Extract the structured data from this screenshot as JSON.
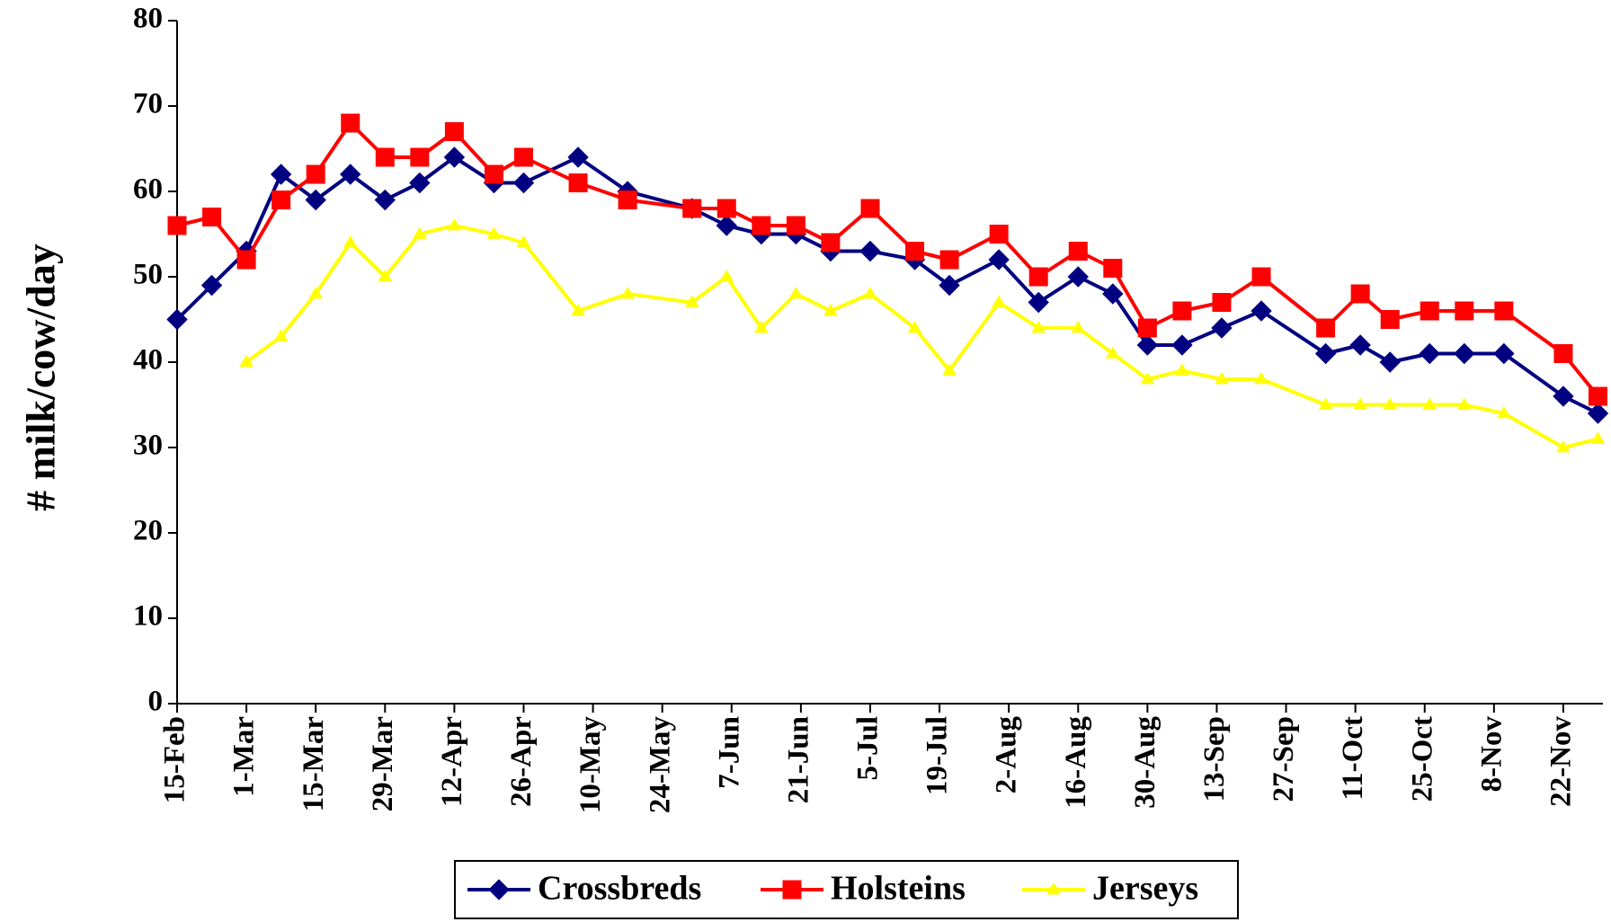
{
  "chart_data": {
    "type": "line",
    "y_label": "# milk/cow/day",
    "x": [
      0,
      7,
      14,
      21,
      28,
      35,
      42,
      49,
      56,
      64,
      70,
      81,
      91,
      104,
      111,
      118,
      125,
      132,
      140,
      149,
      156,
      166,
      174,
      182,
      189,
      196,
      203,
      211,
      219,
      232,
      239,
      245,
      253,
      260,
      268,
      280,
      287
    ],
    "series": [
      {
        "name": "Crossbreds",
        "color": "#000080",
        "marker": "diamond",
        "values": [
          45,
          49,
          53,
          62,
          59,
          62,
          59,
          61,
          64,
          61,
          61,
          64,
          60,
          58,
          56,
          55,
          55,
          53,
          53,
          52,
          49,
          52,
          47,
          50,
          48,
          42,
          42,
          44,
          46,
          41,
          42,
          40,
          41,
          41,
          41,
          36,
          34
        ]
      },
      {
        "name": "Holsteins",
        "color": "#ff0000",
        "marker": "square",
        "values": [
          56,
          57,
          52,
          59,
          62,
          68,
          64,
          64,
          67,
          62,
          64,
          61,
          59,
          58,
          58,
          56,
          56,
          54,
          58,
          53,
          52,
          55,
          50,
          53,
          51,
          44,
          46,
          47,
          50,
          44,
          48,
          45,
          46,
          46,
          46,
          41,
          36
        ]
      },
      {
        "name": "Jerseys",
        "color": "#ffff00",
        "marker": "triangle",
        "values": [
          null,
          null,
          40,
          43,
          48,
          54,
          50,
          55,
          56,
          55,
          54,
          46,
          48,
          47,
          50,
          44,
          48,
          46,
          48,
          44,
          39,
          47,
          44,
          44,
          41,
          38,
          39,
          38,
          38,
          35,
          35,
          35,
          35,
          35,
          34,
          30,
          31
        ]
      }
    ],
    "xlim": [
      0,
      288
    ],
    "xticks": [
      {
        "value": 0,
        "label": "15-Feb"
      },
      {
        "value": 14,
        "label": "1-Mar"
      },
      {
        "value": 28,
        "label": "15-Mar"
      },
      {
        "value": 42,
        "label": "29-Mar"
      },
      {
        "value": 56,
        "label": "12-Apr"
      },
      {
        "value": 70,
        "label": "26-Apr"
      },
      {
        "value": 84,
        "label": "10-May"
      },
      {
        "value": 98,
        "label": "24-May"
      },
      {
        "value": 112,
        "label": "7-Jun"
      },
      {
        "value": 126,
        "label": "21-Jun"
      },
      {
        "value": 140,
        "label": "5-Jul"
      },
      {
        "value": 154,
        "label": "19-Jul"
      },
      {
        "value": 168,
        "label": "2-Aug"
      },
      {
        "value": 182,
        "label": "16-Aug"
      },
      {
        "value": 196,
        "label": "30-Aug"
      },
      {
        "value": 210,
        "label": "13-Sep"
      },
      {
        "value": 224,
        "label": "27-Sep"
      },
      {
        "value": 238,
        "label": "11-Oct"
      },
      {
        "value": 252,
        "label": "25-Oct"
      },
      {
        "value": 266,
        "label": "8-Nov"
      },
      {
        "value": 280,
        "label": "22-Nov"
      }
    ],
    "ylim": [
      0,
      80
    ],
    "yticks": [
      0,
      10,
      20,
      30,
      40,
      50,
      60,
      70,
      80
    ],
    "grid": false,
    "legend": "bottom"
  }
}
